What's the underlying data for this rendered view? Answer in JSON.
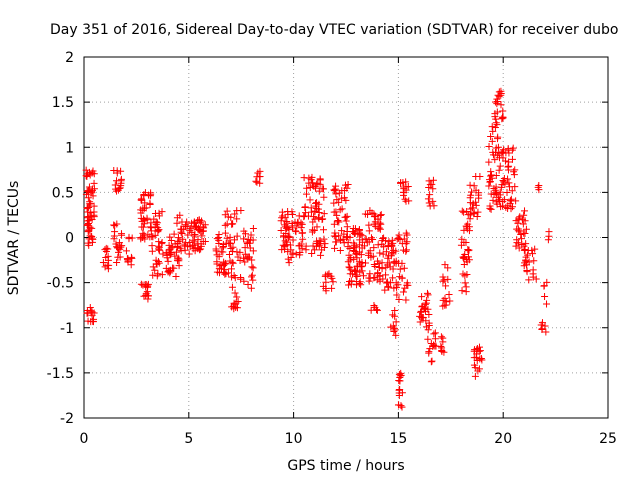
{
  "chart_data": {
    "type": "scatter",
    "title": "Day 351 of 2016, Sidereal Day-to-day VTEC variation (SDTVAR) for receiver dubo",
    "xlabel": "GPS time / hours",
    "ylabel": "SDTVAR / TECUs",
    "xlim": [
      0,
      25
    ],
    "ylim": [
      -2,
      2
    ],
    "x_ticks": [
      "0",
      "5",
      "10",
      "15",
      "20",
      "25"
    ],
    "y_ticks": [
      "2",
      "1.5",
      "1",
      "0.5",
      "0",
      "-0.5",
      "-1",
      "-1.5",
      "-2"
    ],
    "grid": true,
    "marker": "+",
    "series": [
      {
        "name": "SDTVAR",
        "color": "#ff0000",
        "clusters": [
          {
            "x0": 0.1,
            "x1": 0.5,
            "y_lo": -0.1,
            "y_hi": 0.75,
            "n": 60
          },
          {
            "x0": 0.1,
            "x1": 0.5,
            "y_lo": -0.95,
            "y_hi": -0.75,
            "n": 15
          },
          {
            "x0": 0.9,
            "x1": 1.2,
            "y_lo": -0.4,
            "y_hi": -0.1,
            "n": 12
          },
          {
            "x0": 1.4,
            "x1": 1.8,
            "y_lo": 0.5,
            "y_hi": 0.75,
            "n": 15
          },
          {
            "x0": 1.4,
            "x1": 1.8,
            "y_lo": -0.3,
            "y_hi": 0.2,
            "n": 20
          },
          {
            "x0": 2.0,
            "x1": 2.3,
            "y_lo": -0.35,
            "y_hi": 0.05,
            "n": 12
          },
          {
            "x0": 2.7,
            "x1": 3.2,
            "y_lo": -0.05,
            "y_hi": 0.5,
            "n": 40
          },
          {
            "x0": 2.7,
            "x1": 3.1,
            "y_lo": -0.7,
            "y_hi": -0.5,
            "n": 15
          },
          {
            "x0": 3.2,
            "x1": 3.8,
            "y_lo": -0.45,
            "y_hi": 0.3,
            "n": 40
          },
          {
            "x0": 3.9,
            "x1": 4.6,
            "y_lo": -0.45,
            "y_hi": 0.05,
            "n": 35
          },
          {
            "x0": 4.4,
            "x1": 5.2,
            "y_lo": -0.2,
            "y_hi": 0.25,
            "n": 35
          },
          {
            "x0": 5.2,
            "x1": 5.8,
            "y_lo": -0.15,
            "y_hi": 0.2,
            "n": 40
          },
          {
            "x0": 6.3,
            "x1": 6.7,
            "y_lo": -0.4,
            "y_hi": 0.1,
            "n": 25
          },
          {
            "x0": 6.7,
            "x1": 7.5,
            "y_lo": -0.5,
            "y_hi": 0.3,
            "n": 45
          },
          {
            "x0": 7.0,
            "x1": 7.4,
            "y_lo": -0.8,
            "y_hi": -0.55,
            "n": 12
          },
          {
            "x0": 7.6,
            "x1": 8.1,
            "y_lo": -0.6,
            "y_hi": 0.1,
            "n": 30
          },
          {
            "x0": 8.2,
            "x1": 8.5,
            "y_lo": 0.6,
            "y_hi": 0.75,
            "n": 8
          },
          {
            "x0": 9.4,
            "x1": 9.9,
            "y_lo": -0.3,
            "y_hi": 0.3,
            "n": 35
          },
          {
            "x0": 9.9,
            "x1": 10.5,
            "y_lo": -0.2,
            "y_hi": 0.3,
            "n": 30
          },
          {
            "x0": 10.5,
            "x1": 11.5,
            "y_lo": -0.2,
            "y_hi": 0.7,
            "n": 70
          },
          {
            "x0": 11.4,
            "x1": 11.9,
            "y_lo": -0.6,
            "y_hi": -0.4,
            "n": 12
          },
          {
            "x0": 11.9,
            "x1": 12.6,
            "y_lo": -0.2,
            "y_hi": 0.6,
            "n": 50
          },
          {
            "x0": 12.6,
            "x1": 13.3,
            "y_lo": -0.55,
            "y_hi": -0.1,
            "n": 45
          },
          {
            "x0": 12.6,
            "x1": 13.3,
            "y_lo": -0.15,
            "y_hi": 0.1,
            "n": 20
          },
          {
            "x0": 13.3,
            "x1": 14.2,
            "y_lo": -0.5,
            "y_hi": 0.3,
            "n": 55
          },
          {
            "x0": 13.7,
            "x1": 14.0,
            "y_lo": -0.85,
            "y_hi": -0.75,
            "n": 5
          },
          {
            "x0": 14.2,
            "x1": 14.9,
            "y_lo": -0.6,
            "y_hi": 0.0,
            "n": 45
          },
          {
            "x0": 14.6,
            "x1": 14.9,
            "y_lo": -1.1,
            "y_hi": -0.8,
            "n": 10
          },
          {
            "x0": 15.0,
            "x1": 15.2,
            "y_lo": -1.9,
            "y_hi": -1.5,
            "n": 18
          },
          {
            "x0": 14.9,
            "x1": 15.5,
            "y_lo": -0.7,
            "y_hi": 0.05,
            "n": 30
          },
          {
            "x0": 15.1,
            "x1": 15.5,
            "y_lo": 0.4,
            "y_hi": 0.65,
            "n": 15
          },
          {
            "x0": 16.0,
            "x1": 16.5,
            "y_lo": -1.0,
            "y_hi": -0.6,
            "n": 25
          },
          {
            "x0": 16.4,
            "x1": 16.8,
            "y_lo": -1.4,
            "y_hi": -1.0,
            "n": 15
          },
          {
            "x0": 16.4,
            "x1": 16.7,
            "y_lo": 0.3,
            "y_hi": 0.65,
            "n": 12
          },
          {
            "x0": 16.9,
            "x1": 17.2,
            "y_lo": -1.3,
            "y_hi": -1.1,
            "n": 8
          },
          {
            "x0": 17.1,
            "x1": 17.5,
            "y_lo": -0.8,
            "y_hi": -0.3,
            "n": 15
          },
          {
            "x0": 18.0,
            "x1": 18.4,
            "y_lo": -0.6,
            "y_hi": 0.3,
            "n": 35
          },
          {
            "x0": 18.4,
            "x1": 18.9,
            "y_lo": 0.2,
            "y_hi": 0.7,
            "n": 25
          },
          {
            "x0": 18.6,
            "x1": 19.0,
            "y_lo": -1.55,
            "y_hi": -1.1,
            "n": 20
          },
          {
            "x0": 19.3,
            "x1": 19.9,
            "y_lo": 0.3,
            "y_hi": 1.3,
            "n": 50
          },
          {
            "x0": 19.6,
            "x1": 20.0,
            "y_lo": 1.3,
            "y_hi": 1.65,
            "n": 20
          },
          {
            "x0": 19.9,
            "x1": 20.6,
            "y_lo": 0.3,
            "y_hi": 1.0,
            "n": 45
          },
          {
            "x0": 20.6,
            "x1": 21.2,
            "y_lo": -0.2,
            "y_hi": 0.3,
            "n": 30
          },
          {
            "x0": 21.0,
            "x1": 21.6,
            "y_lo": -0.5,
            "y_hi": -0.1,
            "n": 20
          },
          {
            "x0": 21.6,
            "x1": 21.8,
            "y_lo": 0.5,
            "y_hi": 0.58,
            "n": 3
          },
          {
            "x0": 21.8,
            "x1": 22.1,
            "y_lo": -1.05,
            "y_hi": -0.9,
            "n": 6
          },
          {
            "x0": 21.9,
            "x1": 22.1,
            "y_lo": -0.8,
            "y_hi": -0.45,
            "n": 5
          },
          {
            "x0": 21.9,
            "x1": 22.2,
            "y_lo": -0.05,
            "y_hi": 0.1,
            "n": 3
          }
        ]
      }
    ]
  }
}
